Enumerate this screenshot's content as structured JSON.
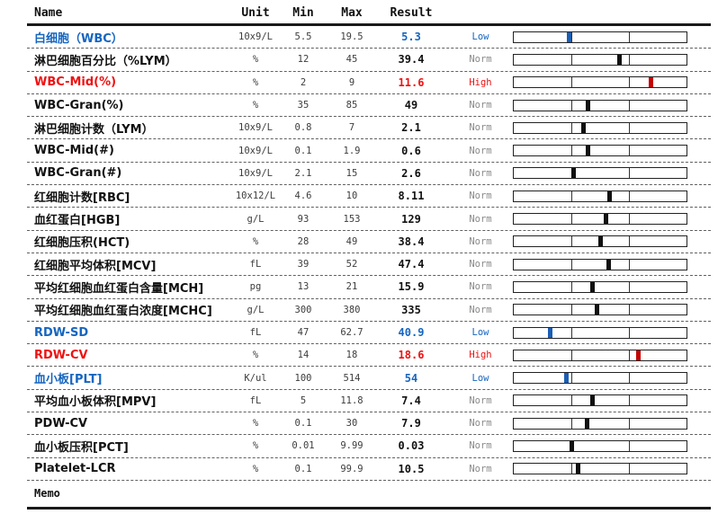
{
  "table": {
    "headers": {
      "name": "Name",
      "unit": "Unit",
      "min": "Min",
      "max": "Max",
      "result": "Result"
    },
    "memo_label": "Memo",
    "status_labels": {
      "low": "Low",
      "norm": "Norm",
      "high": "High"
    },
    "rows": [
      {
        "name": "白细胞（WBC）",
        "unit": "10x9/L",
        "min": "5.5",
        "max": "19.5",
        "result": "5.3",
        "status": "Low",
        "marker": 0.32
      },
      {
        "name": "淋巴细胞百分比（%LYM）",
        "unit": "%",
        "min": "12",
        "max": "45",
        "result": "39.4",
        "status": "Norm",
        "marker": 0.61
      },
      {
        "name": "WBC-Mid(%)",
        "unit": "%",
        "min": "2",
        "max": "9",
        "result": "11.6",
        "status": "High",
        "marker": 0.79
      },
      {
        "name": "WBC-Gran(%)",
        "unit": "%",
        "min": "35",
        "max": "85",
        "result": "49",
        "status": "Norm",
        "marker": 0.427
      },
      {
        "name": "淋巴细胞计数（LYM）",
        "unit": "10x9/L",
        "min": "0.8",
        "max": "7",
        "result": "2.1",
        "status": "Norm",
        "marker": 0.403
      },
      {
        "name": "WBC-Mid(#)",
        "unit": "10x9/L",
        "min": "0.1",
        "max": "1.9",
        "result": "0.6",
        "status": "Norm",
        "marker": 0.426
      },
      {
        "name": "WBC-Gran(#)",
        "unit": "10x9/L",
        "min": "2.1",
        "max": "15",
        "result": "2.6",
        "status": "Norm",
        "marker": 0.346
      },
      {
        "name": "红细胞计数[RBC]",
        "unit": "10x12/L",
        "min": "4.6",
        "max": "10",
        "result": "8.11",
        "status": "Norm",
        "marker": 0.55
      },
      {
        "name": "血红蛋白[HGB]",
        "unit": "g/L",
        "min": "93",
        "max": "153",
        "result": "129",
        "status": "Norm",
        "marker": 0.533
      },
      {
        "name": "红细胞压积(HCT)",
        "unit": "%",
        "min": "28",
        "max": "49",
        "result": "38.4",
        "status": "Norm",
        "marker": 0.498
      },
      {
        "name": "红细胞平均体积[MCV]",
        "unit": "fL",
        "min": "39",
        "max": "52",
        "result": "47.4",
        "status": "Norm",
        "marker": 0.549
      },
      {
        "name": "平均红细胞血红蛋白含量[MCH]",
        "unit": "pg",
        "min": "13",
        "max": "21",
        "result": "15.9",
        "status": "Norm",
        "marker": 0.454
      },
      {
        "name": "平均红细胞血红蛋白浓度[MCHC]",
        "unit": "g/L",
        "min": "300",
        "max": "380",
        "result": "335",
        "status": "Norm",
        "marker": 0.479
      },
      {
        "name": "RDW-SD",
        "unit": "fL",
        "min": "47",
        "max": "62.7",
        "result": "40.9",
        "status": "Low",
        "marker": 0.21
      },
      {
        "name": "RDW-CV",
        "unit": "%",
        "min": "14",
        "max": "18",
        "result": "18.6",
        "status": "High",
        "marker": 0.72
      },
      {
        "name": "血小板[PLT]",
        "unit": "K/ul",
        "min": "100",
        "max": "514",
        "result": "54",
        "status": "Low",
        "marker": 0.3
      },
      {
        "name": "平均血小板体积[MPV]",
        "unit": "fL",
        "min": "5",
        "max": "11.8",
        "result": "7.4",
        "status": "Norm",
        "marker": 0.451
      },
      {
        "name": "PDW-CV",
        "unit": "%",
        "min": "0.1",
        "max": "30",
        "result": "7.9",
        "status": "Norm",
        "marker": 0.42
      },
      {
        "name": "血小板压积[PCT]",
        "unit": "%",
        "min": "0.01",
        "max": "9.99",
        "result": "0.03",
        "status": "Norm",
        "marker": 0.335
      },
      {
        "name": "Platelet-LCR",
        "unit": "%",
        "min": "0.1",
        "max": "99.9",
        "result": "10.5",
        "status": "Norm",
        "marker": 0.368
      }
    ]
  },
  "colors": {
    "low_blue": "#1565C0",
    "high_red": "#EE1111",
    "marker_red": "#C40000",
    "marker_blue": "#1B5EB5",
    "norm_status_gray": "#8A8A8A",
    "text_black": "#111111"
  }
}
